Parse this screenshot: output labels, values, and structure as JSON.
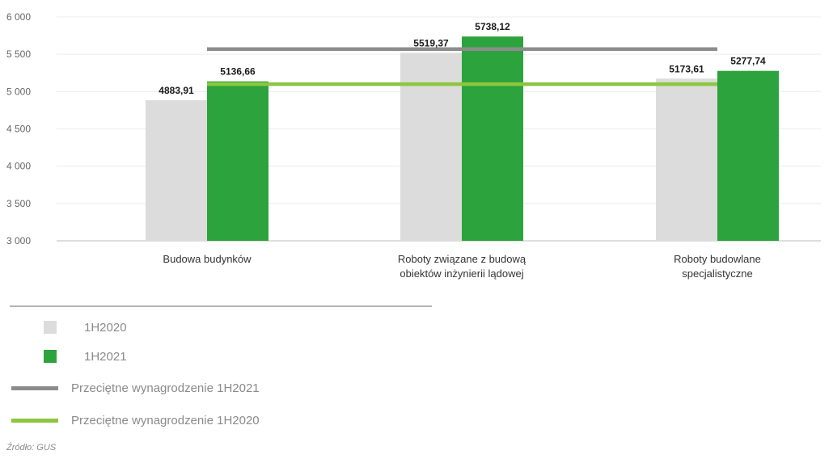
{
  "chart_data": {
    "type": "bar",
    "categories": [
      [
        "Budowa budynków"
      ],
      [
        "Roboty związane z budową",
        "obiektów  inżynierii lądowej"
      ],
      [
        "Roboty budowlane",
        "specjalistyczne"
      ]
    ],
    "series": [
      {
        "name": "1H2020",
        "color": "#dcdcdc",
        "values": [
          4883.91,
          5519.37,
          5173.61
        ],
        "labels": [
          "4883,91",
          "5519,37",
          "5173,61"
        ]
      },
      {
        "name": "1H2021",
        "color": "#2ca33c",
        "values": [
          5136.66,
          5738.12,
          5277.74
        ],
        "labels": [
          "5136,66",
          "5738,12",
          "5277,74"
        ]
      }
    ],
    "reference_lines": [
      {
        "name": "Przeciętne wynagrodzenie 1H2021",
        "color": "#8c8c8c",
        "value": 5570
      },
      {
        "name": "Przeciętne wynagrodzenie 1H2020",
        "color": "#8dc63f",
        "value": 5100
      }
    ],
    "ylim": [
      3000,
      6000
    ],
    "yticks": [
      3000,
      3500,
      4000,
      4500,
      5000,
      5500,
      6000
    ],
    "ytick_labels": [
      "3 000",
      "3 500",
      "4 000",
      "4 500",
      "5 000",
      "5 500",
      "6 000"
    ],
    "grid": true,
    "legend_position": "bottom-left"
  },
  "legend": [
    {
      "label": "1H2020",
      "kind": "square",
      "color": "#dcdcdc"
    },
    {
      "label": "1H2021",
      "kind": "square",
      "color": "#2ca33c"
    },
    {
      "label": "Przeciętne wynagrodzenie 1H2021",
      "kind": "line",
      "color": "#8c8c8c"
    },
    {
      "label": "Przeciętne wynagrodzenie 1H2020",
      "kind": "line",
      "color": "#8dc63f"
    }
  ],
  "source": "Źródło: GUS"
}
